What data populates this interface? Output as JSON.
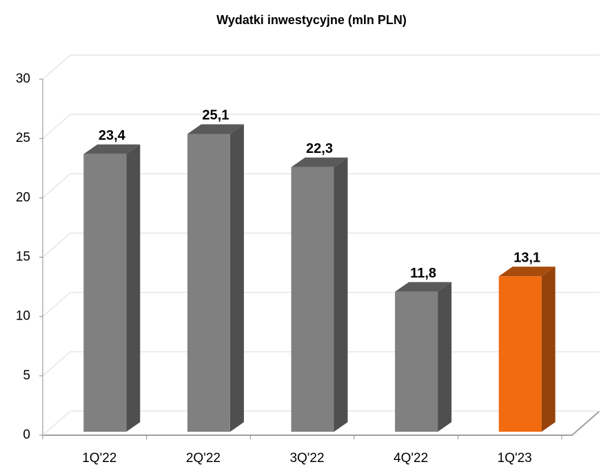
{
  "chart_data": {
    "type": "bar3d",
    "title": "Wydatki inwestycyjne (mln PLN)",
    "categories": [
      "1Q'22",
      "2Q'22",
      "3Q'22",
      "4Q'22",
      "1Q'23"
    ],
    "values": [
      23.4,
      25.1,
      22.3,
      11.8,
      13.1
    ],
    "value_labels": [
      "23,4",
      "25,1",
      "22,3",
      "11,8",
      "13,1"
    ],
    "colors": [
      "#808080",
      "#808080",
      "#808080",
      "#808080",
      "#f26b11"
    ],
    "ylim": [
      0,
      30
    ],
    "yticks": [
      0,
      5,
      10,
      15,
      20,
      25,
      30
    ],
    "grid": true
  }
}
